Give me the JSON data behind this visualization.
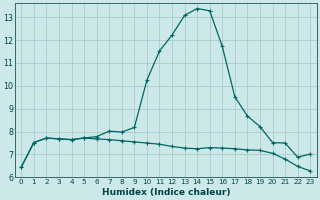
{
  "xlabel": "Humidex (Indice chaleur)",
  "background_color": "#cce8e8",
  "grid_color": "#aacccc",
  "line_color": "#006666",
  "xlim": [
    -0.5,
    23.5
  ],
  "ylim": [
    6.0,
    13.6
  ],
  "yticks": [
    6,
    7,
    8,
    9,
    10,
    11,
    12,
    13
  ],
  "xticks": [
    0,
    1,
    2,
    3,
    4,
    5,
    6,
    7,
    8,
    9,
    10,
    11,
    12,
    13,
    14,
    15,
    16,
    17,
    18,
    19,
    20,
    21,
    22,
    23
  ],
  "line1_x": [
    0,
    1,
    2,
    3,
    4,
    5,
    6,
    7,
    8,
    9,
    10,
    11,
    12,
    13,
    14,
    15,
    16,
    17,
    18,
    19,
    20,
    21,
    22,
    23
  ],
  "line1_y": [
    6.45,
    7.52,
    7.72,
    7.68,
    7.65,
    7.72,
    7.78,
    8.02,
    7.98,
    8.18,
    10.25,
    11.52,
    12.22,
    13.08,
    13.38,
    13.28,
    11.72,
    9.52,
    8.68,
    8.22,
    7.52,
    7.5,
    6.88,
    7.02
  ],
  "line2_x": [
    0,
    1,
    2,
    3,
    4,
    5,
    6,
    7,
    8,
    9,
    10,
    11,
    12,
    13,
    14,
    15,
    16,
    17,
    18,
    19,
    20,
    21,
    22,
    23
  ],
  "line2_y": [
    6.45,
    7.52,
    7.72,
    7.68,
    7.65,
    7.72,
    7.68,
    7.65,
    7.6,
    7.55,
    7.5,
    7.45,
    7.35,
    7.28,
    7.25,
    7.3,
    7.28,
    7.25,
    7.2,
    7.18,
    7.05,
    6.8,
    6.48,
    6.28
  ]
}
